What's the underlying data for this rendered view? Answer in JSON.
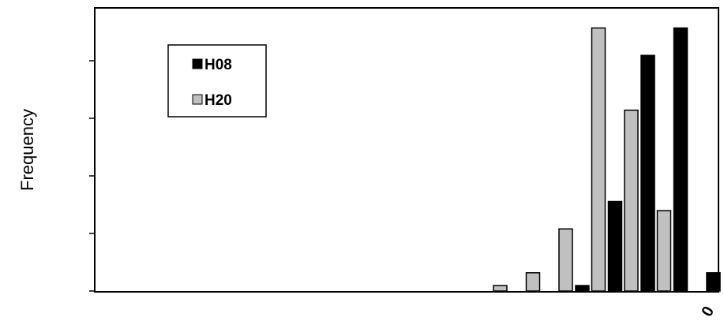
{
  "chart_data": {
    "type": "bar",
    "title": "",
    "ylabel": "Frequency",
    "xlabel": "",
    "x_tick_labels": [
      "0"
    ],
    "y_tick_count": 5,
    "ylim": [
      0,
      3.1
    ],
    "legend": {
      "placement": "top-left",
      "border": true
    },
    "series": [
      {
        "name": "H08",
        "color": "#000000",
        "values": [
          {
            "bin": 6,
            "value": 0.06
          },
          {
            "bin": 7,
            "value": 0.98
          },
          {
            "bin": 8,
            "value": 2.58
          },
          {
            "bin": 9,
            "value": 2.88
          },
          {
            "bin": 10,
            "value": 0.2
          }
        ]
      },
      {
        "name": "H20",
        "color": "#c0c0c0",
        "values": [
          {
            "bin": 4,
            "value": 0.06
          },
          {
            "bin": 5,
            "value": 0.2
          },
          {
            "bin": 6,
            "value": 0.68
          },
          {
            "bin": 7,
            "value": 2.88
          },
          {
            "bin": 8,
            "value": 1.98
          },
          {
            "bin": 9,
            "value": 0.88
          }
        ]
      }
    ]
  }
}
